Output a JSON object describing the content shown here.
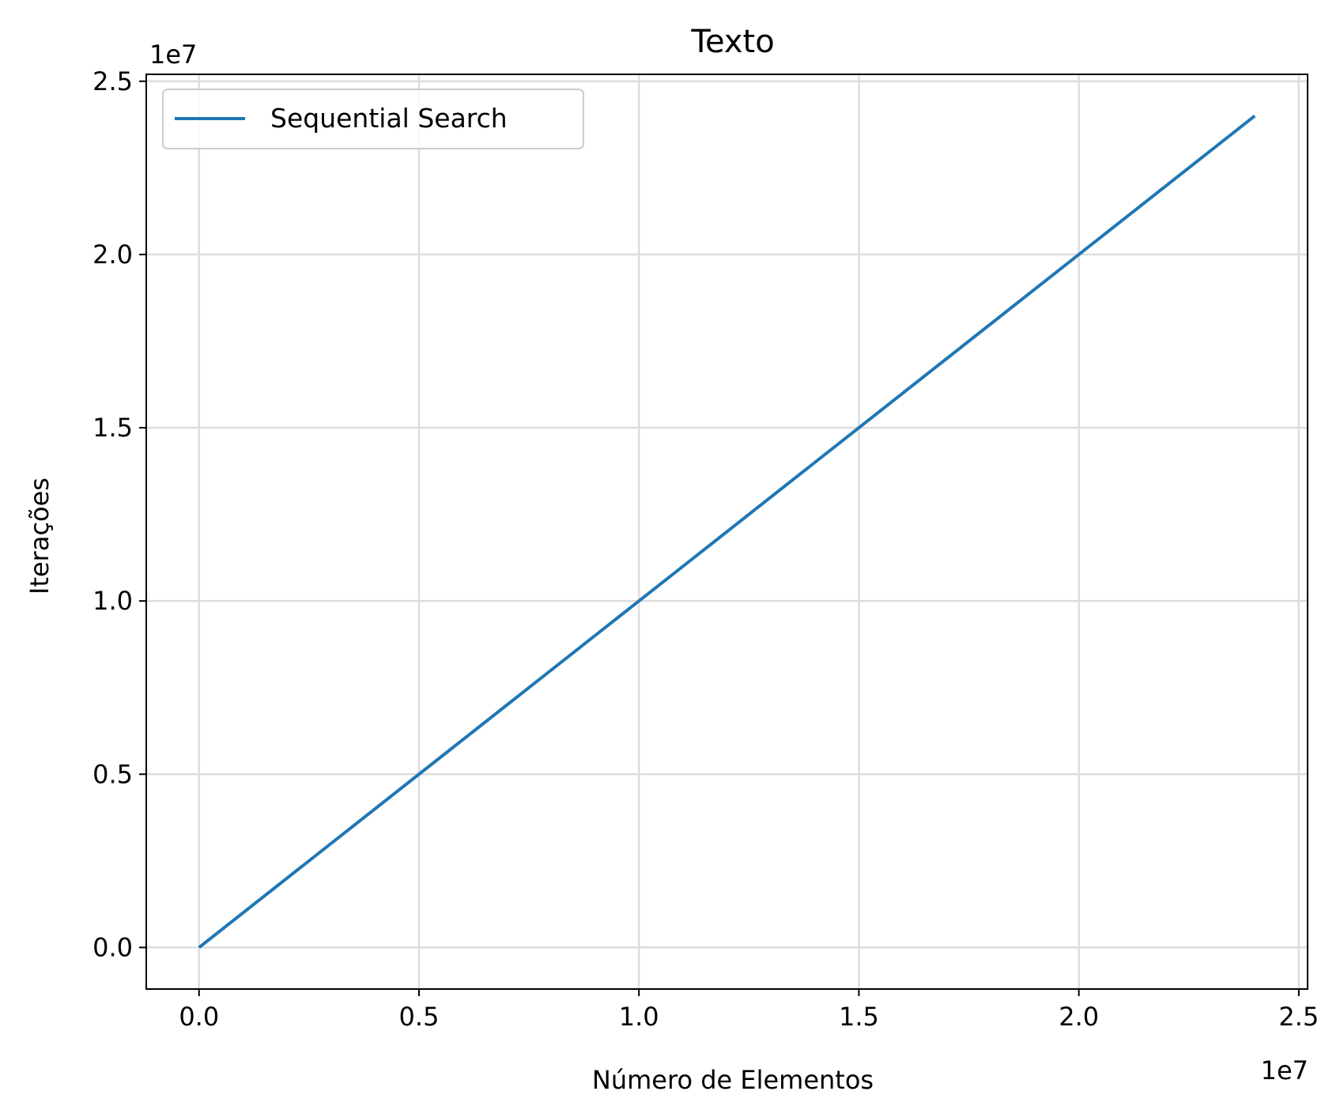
{
  "chart_data": {
    "type": "line",
    "title": "Texto",
    "xlabel": "Número de Elementos",
    "ylabel": "Iterações",
    "x_offset_text": "1e7",
    "y_offset_text": "1e7",
    "xlim": [
      -1.2,
      25.2
    ],
    "ylim": [
      -1.2,
      25.2
    ],
    "x_ticks": [
      0,
      5,
      10,
      15,
      20,
      25
    ],
    "x_tick_labels": [
      "0.0",
      "0.5",
      "1.0",
      "1.5",
      "2.0",
      "2.5"
    ],
    "y_ticks": [
      0,
      5,
      10,
      15,
      20,
      25
    ],
    "y_tick_labels": [
      "0.0",
      "0.5",
      "1.0",
      "1.5",
      "2.0",
      "2.5"
    ],
    "grid": true,
    "legend_position": "top-left",
    "series": [
      {
        "name": "Sequential Search",
        "color": "#1f77b4",
        "x": [
          0,
          24
        ],
        "y": [
          0,
          24
        ]
      }
    ]
  }
}
